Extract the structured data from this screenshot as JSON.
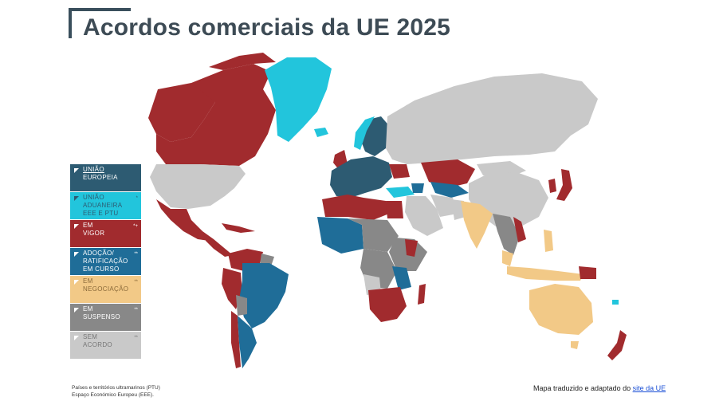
{
  "title": "Acordos comerciais da UE 2025",
  "colors": {
    "eu": "#2d5b72",
    "customs_union": "#22c5dc",
    "in_force": "#a12b2e",
    "adoption": "#1f6d98",
    "negotiation": "#f2c987",
    "suspended": "#888888",
    "no_agreement": "#c9c9c9",
    "title_bar": "#3a4f5c"
  },
  "legend": [
    {
      "key": "eu",
      "line1": "UNIÃO",
      "line2": "EUROPEIA",
      "line3": "",
      "marker": "",
      "color": "#2d5b72",
      "text_color": "#ffffff"
    },
    {
      "key": "customs_union",
      "line1": "UNIÃO",
      "line2": "ADUANEIRA",
      "line3": "EEE E PTU",
      "marker": "*",
      "color": "#22c5dc",
      "text_color": "#2d5b72"
    },
    {
      "key": "in_force",
      "line1": "EM",
      "line2": "VIGOR",
      "line3": "",
      "marker": "*+",
      "color": "#a12b2e",
      "text_color": "#ffffff"
    },
    {
      "key": "adoption",
      "line1": "ADOÇÃO/",
      "line2": "RATIFICAÇÃO",
      "line3": "EM CURSO",
      "marker": "**",
      "color": "#1f6d98",
      "text_color": "#ffffff"
    },
    {
      "key": "negotiation",
      "line1": "EM",
      "line2": "NEGOCIAÇÃO",
      "line3": "",
      "marker": "**",
      "color": "#f2c987",
      "text_color": "#8a6a3a"
    },
    {
      "key": "suspended",
      "line1": "EM",
      "line2": "SUSPENSO",
      "line3": "",
      "marker": "**",
      "color": "#888888",
      "text_color": "#ffffff"
    },
    {
      "key": "no_agreement",
      "line1": "SEM",
      "line2": "ACORDO",
      "line3": "",
      "marker": "**",
      "color": "#c9c9c9",
      "text_color": "#777777"
    }
  ],
  "footnote": {
    "line1": "Países e territórios ultramarinos (PTU)",
    "line2": "Espaço Económico Europeu (EEE)."
  },
  "source": {
    "prefix": "Mapa traduzido e adaptado do ",
    "link_text": "site da UE"
  }
}
